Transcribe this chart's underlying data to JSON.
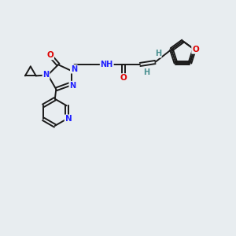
{
  "background_color": "#e8edf0",
  "bond_color": "#1a1a1a",
  "n_color": "#2020ff",
  "o_color": "#dd0000",
  "h_color": "#4a9090",
  "figsize": [
    3.0,
    3.0
  ],
  "dpi": 100,
  "xlim": [
    0,
    10
  ],
  "ylim": [
    0,
    10
  ]
}
